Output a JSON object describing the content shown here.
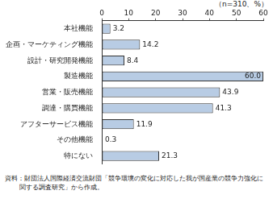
{
  "chart_data": {
    "type": "bar",
    "orientation": "horizontal",
    "annotations": [
      "（n=310、%）",
      "資料：財団法人国際経済交流財団「競争環境の変化に対応した我が国産業の競争力強化に関する調査研究」から作成。"
    ],
    "categories": [
      "本社機能",
      "企画・マーケティング機能",
      "設計・研究開発機能",
      "製造機能",
      "営業・販売機能",
      "調達・購買機能",
      "アフターサービス機能",
      "その他機能",
      "特にない"
    ],
    "values": [
      3.2,
      14.2,
      8.4,
      60.0,
      43.9,
      41.3,
      11.9,
      0.3,
      21.3
    ],
    "value_labels": [
      "3.2",
      "14.2",
      "8.4",
      "60.0",
      "43.9",
      "41.3",
      "11.9",
      "0.3",
      "21.3"
    ],
    "color": "#b8cce4",
    "xlim": [
      0,
      60
    ],
    "xticks": [
      0,
      10,
      20,
      30,
      40,
      50,
      60
    ],
    "grid": false,
    "data_labels": true
  }
}
